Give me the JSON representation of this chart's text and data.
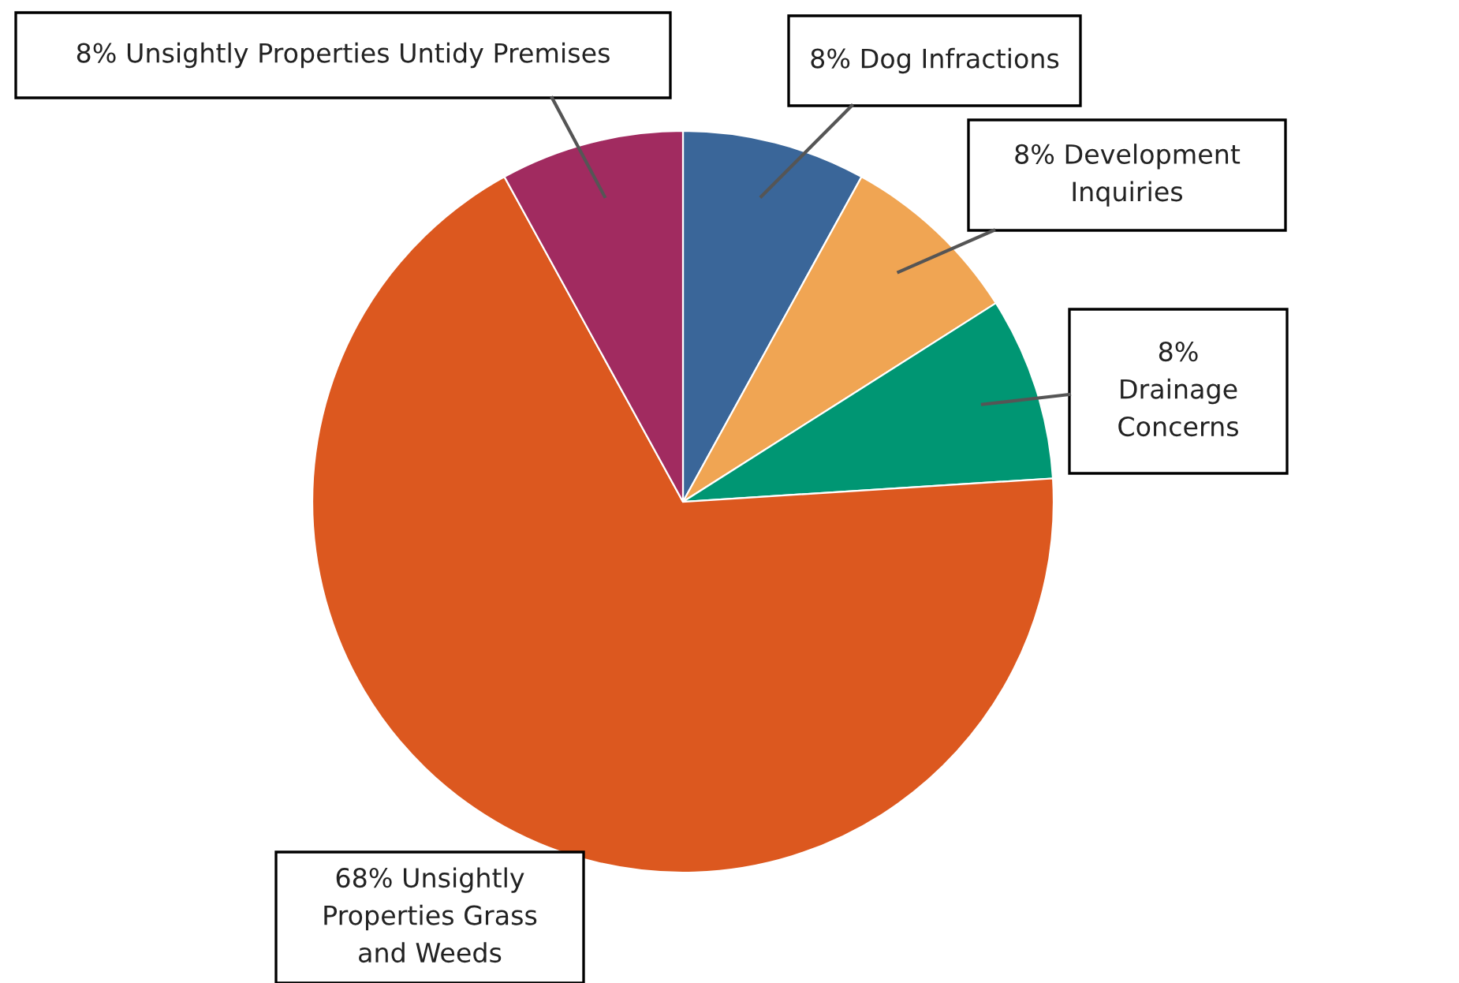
{
  "chart_data": {
    "type": "pie",
    "categories": [
      "8% Dog Infractions",
      "8% Development Inquiries",
      "8% Drainage Concerns",
      "68% Unsightly Properties Grass and Weeds",
      "8% Unsightly Properties Untidy Premises"
    ],
    "values": [
      8,
      8,
      8,
      68,
      8
    ],
    "colors": [
      "#3a6699",
      "#f0a553",
      "#009673",
      "#dc581f",
      "#a12b60"
    ],
    "legend": false
  }
}
